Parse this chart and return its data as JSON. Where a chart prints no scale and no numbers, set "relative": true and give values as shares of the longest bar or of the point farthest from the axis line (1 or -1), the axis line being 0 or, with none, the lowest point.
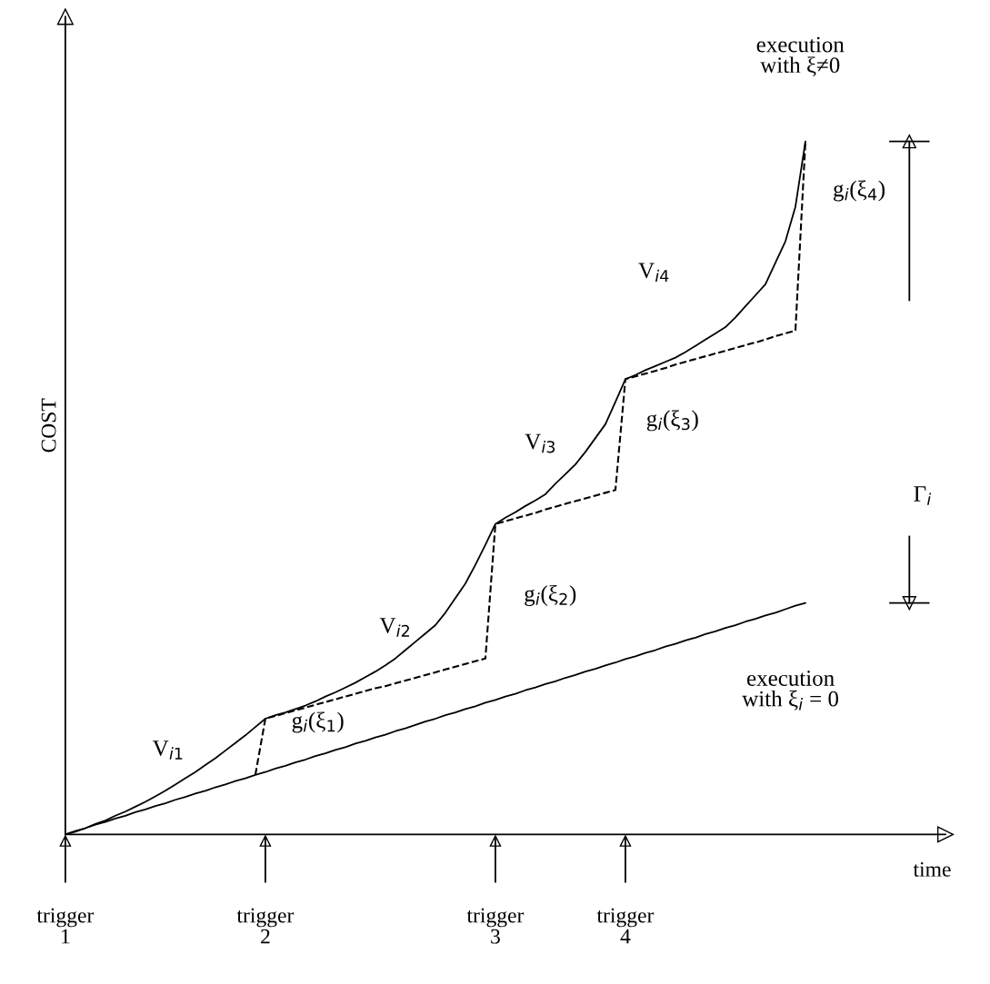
{
  "chart_data": {
    "type": "line",
    "relative": true,
    "xlabel": "time",
    "ylabel": "COST",
    "ylim": [
      0,
      1.18
    ],
    "tick_labels": "x",
    "grid": false,
    "legend": false,
    "marker": "none",
    "categories": [
      "trigger\n1",
      null,
      null,
      null,
      null,
      null,
      null,
      null,
      null,
      null,
      null,
      null,
      null,
      null,
      null,
      null,
      null,
      null,
      null,
      null,
      "trigger\n2",
      null,
      null,
      null,
      null,
      null,
      null,
      null,
      null,
      null,
      null,
      null,
      null,
      null,
      null,
      null,
      null,
      null,
      null,
      null,
      null,
      null,
      null,
      "trigger\n3",
      null,
      null,
      null,
      null,
      null,
      null,
      null,
      null,
      null,
      null,
      null,
      null,
      "trigger\n4",
      null,
      null,
      null,
      null,
      null,
      null,
      null,
      null,
      null,
      null,
      null,
      null,
      null,
      null,
      null,
      null,
      null,
      null,
      null,
      null,
      null,
      null,
      null,
      null,
      null,
      null,
      null,
      null,
      null,
      null,
      null,
      null
    ],
    "series": [
      {
        "color": "#000000",
        "line_style": "solid",
        "values": [
          0,
          0.005,
          0.009,
          0.014,
          0.018,
          0.023,
          0.027,
          0.032,
          0.036,
          0.041,
          0.045,
          0.05,
          0.054,
          0.059,
          0.063,
          0.068,
          0.072,
          0.077,
          0.081,
          0.086,
          0.09,
          0.095,
          0.099,
          0.104,
          0.108,
          0.113,
          0.117,
          0.122,
          0.126,
          0.131,
          0.135,
          0.14,
          0.144,
          0.149,
          0.153,
          0.158,
          0.163,
          0.167,
          0.172,
          0.176,
          0.181,
          0.185,
          0.19,
          0.194,
          0.199,
          0.203,
          0.208,
          0.212,
          0.217,
          0.221,
          0.226,
          0.23,
          0.235,
          0.239,
          0.244,
          0.248,
          0.253,
          0.257,
          0.262,
          0.266,
          0.271,
          0.275,
          0.28,
          0.284,
          0.289,
          0.293,
          0.298,
          0.302,
          0.307,
          0.311,
          0.316,
          0.32,
          0.325,
          0.33,
          0.334,
          null,
          null,
          null,
          null,
          null,
          null,
          null,
          null,
          null,
          null,
          null,
          null,
          null,
          null
        ]
      },
      {
        "color": "#000000",
        "line_style": "solid",
        "values": [
          0,
          0.004,
          0.009,
          0.015,
          0.02,
          0.027,
          0.033,
          0.04,
          0.047,
          0.055,
          0.063,
          0.072,
          0.081,
          0.09,
          0.1,
          0.11,
          0.121,
          0.132,
          0.143,
          0.155,
          0.167,
          0.172,
          0.176,
          0.181,
          0.186,
          0.192,
          0.199,
          0.205,
          0.212,
          0.219,
          0.227,
          0.235,
          0.244,
          0.254,
          0.266,
          0.278,
          0.29,
          0.302,
          0.32,
          0.341,
          0.362,
          0.389,
          0.418,
          0.448,
          0.457,
          0.465,
          0.474,
          0.482,
          0.491,
          0.506,
          0.52,
          0.534,
          0.552,
          0.572,
          0.592,
          0.624,
          0.657,
          0.663,
          0.67,
          0.676,
          0.682,
          0.688,
          0.696,
          0.705,
          0.714,
          0.723,
          0.732,
          0.746,
          0.762,
          0.778,
          0.794,
          0.825,
          0.856,
          0.906,
          1.0,
          null,
          null,
          null,
          null,
          null,
          null,
          null,
          null,
          null,
          null,
          null,
          null,
          null,
          null
        ]
      },
      {
        "color": "#000000",
        "line_style": "dashed",
        "values": [
          null,
          null,
          null,
          null,
          null,
          null,
          null,
          null,
          null,
          null,
          null,
          null,
          null,
          null,
          null,
          null,
          null,
          null,
          null,
          0.086,
          0.167,
          0.171,
          0.175,
          0.179,
          0.183,
          0.187,
          0.191,
          0.195,
          0.199,
          0.203,
          0.207,
          0.211,
          0.214,
          0.218,
          0.222,
          0.226,
          0.23,
          0.234,
          0.238,
          0.242,
          0.246,
          0.25,
          0.254,
          0.448,
          0.452,
          0.456,
          0.46,
          0.464,
          0.469,
          0.473,
          0.477,
          0.481,
          0.485,
          0.489,
          0.493,
          0.497,
          0.657,
          0.661,
          0.665,
          0.669,
          0.673,
          0.678,
          0.682,
          0.686,
          0.69,
          0.694,
          0.698,
          0.702,
          0.706,
          0.71,
          0.714,
          0.719,
          0.723,
          0.727,
          1.0,
          null,
          null,
          null,
          null,
          null,
          null,
          null,
          null,
          null,
          null,
          null,
          null,
          null,
          null
        ]
      }
    ],
    "annotations": [
      "V$_{i1}$",
      "g$_{i}$(ξ$_{1}$)",
      "V$_{i2}$",
      "g$_{i}$(ξ$_{2}$)",
      "V$_{i3}$",
      "g$_{i}$(ξ$_{3}$)",
      "V$_{i4}$",
      "g$_{i}$(ξ$_{4}$)",
      "execution\nwith ξ≠0",
      "execution\nwith ξ$_{i}$ = 0",
      "Γ$_{i}$"
    ]
  }
}
